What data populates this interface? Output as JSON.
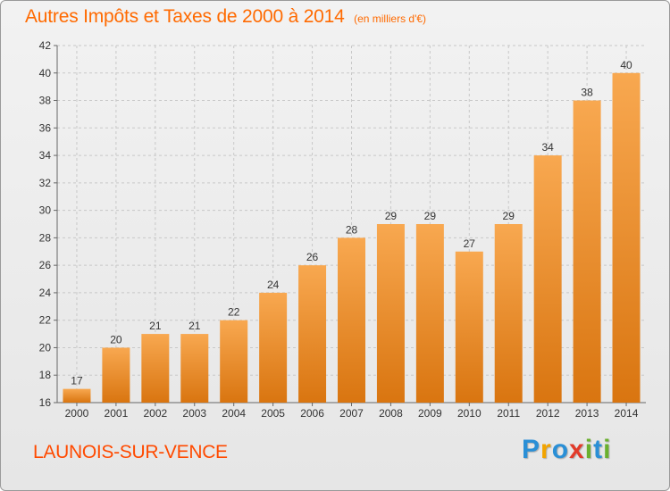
{
  "header": {
    "title": "Autres Impôts et Taxes de 2000 à 2014",
    "subtitle": "(en milliers d'€)"
  },
  "footer": {
    "commune": "LAUNOIS-SUR-VENCE",
    "logo": [
      "P",
      "r",
      "o",
      "x",
      "i",
      "t",
      "i"
    ],
    "logo_colors": [
      "#2a8fd6",
      "#f2a400",
      "#2a8fd6",
      "#e23b2a",
      "#6ab02e",
      "#2a8fd6",
      "#6ab02e"
    ]
  },
  "colors": {
    "title": "#ff6a00",
    "bar_light": "#f8a850",
    "bar_dark": "#d97510",
    "grid": "#c8c8c8"
  },
  "chart_data": {
    "type": "bar",
    "title": "Autres Impôts et Taxes de 2000 à 2014",
    "subtitle": "(en milliers d'€)",
    "categories": [
      "2000",
      "2001",
      "2002",
      "2003",
      "2004",
      "2005",
      "2006",
      "2007",
      "2008",
      "2009",
      "2010",
      "2011",
      "2012",
      "2013",
      "2014"
    ],
    "values": [
      17,
      20,
      21,
      21,
      22,
      24,
      26,
      28,
      29,
      29,
      27,
      29,
      34,
      38,
      40
    ],
    "ylim": [
      16,
      42
    ],
    "yticks": [
      16,
      18,
      20,
      22,
      24,
      26,
      28,
      30,
      32,
      34,
      36,
      38,
      40,
      42
    ],
    "xlabel": "",
    "ylabel": "",
    "grid": true,
    "legend": "none"
  }
}
